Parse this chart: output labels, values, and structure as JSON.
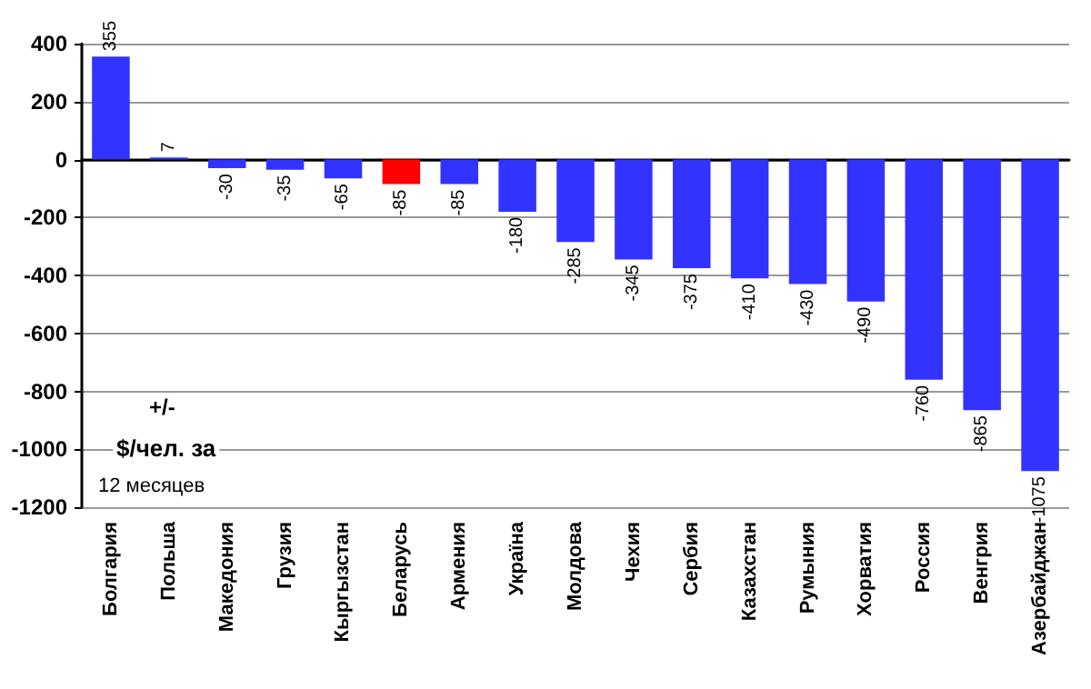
{
  "chart_data": {
    "type": "bar",
    "categories": [
      "Болгария",
      "Польша",
      "Македония",
      "Грузия",
      "Кыргызстан",
      "Беларусь",
      "Армения",
      "Україна",
      "Молдова",
      "Чехия",
      "Сербия",
      "Казахстан",
      "Румыния",
      "Хорватия",
      "Россия",
      "Венгрия",
      "Азербайджан"
    ],
    "values": [
      355,
      7,
      -30,
      -35,
      -65,
      -85,
      -85,
      -180,
      -285,
      -345,
      -375,
      -410,
      -430,
      -490,
      -760,
      -865,
      -1075
    ],
    "colors": [
      "#3333ff",
      "#3333ff",
      "#3333ff",
      "#3333ff",
      "#3333ff",
      "#ff0000",
      "#3333ff",
      "#3333ff",
      "#3333ff",
      "#3333ff",
      "#3333ff",
      "#3333ff",
      "#3333ff",
      "#3333ff",
      "#3333ff",
      "#3333ff",
      "#3333ff"
    ],
    "ylim": [
      -1200,
      400
    ],
    "yticks": [
      -1200,
      -1000,
      -800,
      -600,
      -400,
      -200,
      0,
      200,
      400
    ],
    "grid": "y",
    "data_labels": true,
    "annotations": [
      "+/-",
      "$/чел. за",
      "12 месяцев"
    ]
  }
}
